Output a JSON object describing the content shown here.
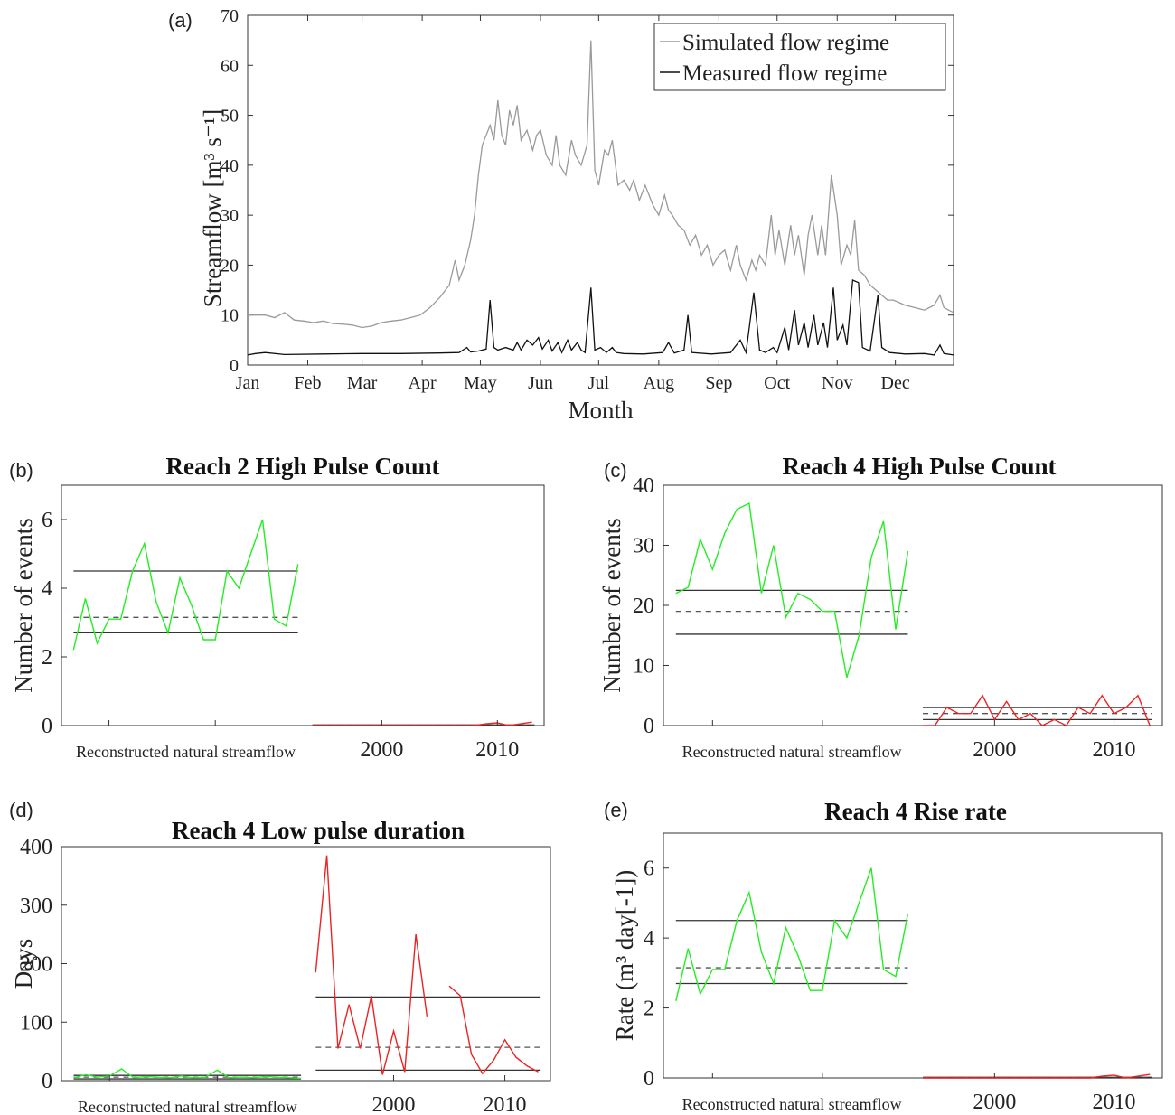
{
  "chart_data": [
    {
      "panel": "(a)",
      "type": "line",
      "title": "",
      "xlabel": "Month",
      "ylabel": "Streamflow [m³ s⁻¹]",
      "ylim": [
        0,
        70
      ],
      "yticks": [
        0,
        10,
        20,
        30,
        40,
        50,
        60,
        70
      ],
      "x_tick_labels": [
        "Jan",
        "Feb",
        "Mar",
        "Apr",
        "May",
        "Jun",
        "Jul",
        "Aug",
        "Sep",
        "Oct",
        "Nov",
        "Dec"
      ],
      "x_units": "day of year",
      "xlim": [
        1,
        365
      ],
      "grid": false,
      "legend": "top-right",
      "series": [
        {
          "name": "Simulated flow regime",
          "color": "#9a9a9a",
          "points": [
            [
              1,
              10
            ],
            [
              10,
              10
            ],
            [
              15,
              9.5
            ],
            [
              20,
              10.5
            ],
            [
              25,
              9
            ],
            [
              30,
              8.8
            ],
            [
              35,
              8.5
            ],
            [
              40,
              8.8
            ],
            [
              45,
              8.3
            ],
            [
              50,
              8.2
            ],
            [
              55,
              8.0
            ],
            [
              60,
              7.5
            ],
            [
              65,
              7.8
            ],
            [
              70,
              8.5
            ],
            [
              75,
              8.8
            ],
            [
              80,
              9.0
            ],
            [
              85,
              9.5
            ],
            [
              90,
              10.0
            ],
            [
              95,
              11.5
            ],
            [
              100,
              13.5
            ],
            [
              105,
              16
            ],
            [
              108,
              21
            ],
            [
              110,
              17
            ],
            [
              113,
              20
            ],
            [
              116,
              25
            ],
            [
              118,
              30
            ],
            [
              120,
              38
            ],
            [
              122,
              44
            ],
            [
              124,
              46
            ],
            [
              126,
              48
            ],
            [
              128,
              45
            ],
            [
              130,
              53
            ],
            [
              132,
              46
            ],
            [
              134,
              44
            ],
            [
              136,
              51
            ],
            [
              138,
              48
            ],
            [
              140,
              52
            ],
            [
              142,
              45
            ],
            [
              145,
              47
            ],
            [
              148,
              43
            ],
            [
              150,
              46
            ],
            [
              152,
              47
            ],
            [
              155,
              42
            ],
            [
              158,
              40
            ],
            [
              160,
              46
            ],
            [
              162,
              40
            ],
            [
              165,
              38
            ],
            [
              168,
              45
            ],
            [
              170,
              42
            ],
            [
              173,
              40
            ],
            [
              176,
              44
            ],
            [
              178,
              65
            ],
            [
              180,
              39
            ],
            [
              182,
              36
            ],
            [
              185,
              43
            ],
            [
              187,
              42
            ],
            [
              189,
              45
            ],
            [
              192,
              36
            ],
            [
              195,
              37
            ],
            [
              198,
              35
            ],
            [
              200,
              37
            ],
            [
              203,
              33
            ],
            [
              206,
              36
            ],
            [
              208,
              34
            ],
            [
              210,
              32
            ],
            [
              213,
              30
            ],
            [
              216,
              34
            ],
            [
              218,
              31
            ],
            [
              220,
              30
            ],
            [
              223,
              28
            ],
            [
              226,
              27
            ],
            [
              229,
              24
            ],
            [
              232,
              26
            ],
            [
              235,
              22
            ],
            [
              238,
              24
            ],
            [
              241,
              20
            ],
            [
              244,
              22
            ],
            [
              247,
              23
            ],
            [
              250,
              19
            ],
            [
              253,
              24
            ],
            [
              255,
              20
            ],
            [
              258,
              17
            ],
            [
              261,
              21
            ],
            [
              263,
              19
            ],
            [
              265,
              22
            ],
            [
              268,
              20
            ],
            [
              271,
              30
            ],
            [
              273,
              22
            ],
            [
              275,
              27
            ],
            [
              278,
              20
            ],
            [
              281,
              28
            ],
            [
              283,
              22
            ],
            [
              285,
              26
            ],
            [
              288,
              18
            ],
            [
              290,
              26
            ],
            [
              292,
              30
            ],
            [
              295,
              22
            ],
            [
              297,
              28
            ],
            [
              299,
              22
            ],
            [
              302,
              38
            ],
            [
              305,
              30
            ],
            [
              307,
              20
            ],
            [
              310,
              24
            ],
            [
              312,
              22
            ],
            [
              314,
              29
            ],
            [
              316,
              19
            ],
            [
              319,
              18
            ],
            [
              322,
              16
            ],
            [
              325,
              15
            ],
            [
              328,
              14
            ],
            [
              331,
              13
            ],
            [
              334,
              13
            ],
            [
              337,
              12.5
            ],
            [
              340,
              12
            ],
            [
              345,
              11.5
            ],
            [
              350,
              11
            ],
            [
              355,
              12
            ],
            [
              358,
              14
            ],
            [
              360,
              11.5
            ],
            [
              365,
              10.5
            ]
          ]
        },
        {
          "name": "Measured flow regime",
          "color": "#111111",
          "points": [
            [
              1,
              2
            ],
            [
              5,
              2.3
            ],
            [
              10,
              2.5
            ],
            [
              20,
              2.1
            ],
            [
              40,
              2.2
            ],
            [
              60,
              2.3
            ],
            [
              80,
              2.3
            ],
            [
              100,
              2.4
            ],
            [
              110,
              2.5
            ],
            [
              114,
              3.5
            ],
            [
              116,
              2.6
            ],
            [
              120,
              2.8
            ],
            [
              124,
              3.2
            ],
            [
              126,
              13.0
            ],
            [
              128,
              3.5
            ],
            [
              130,
              3.0
            ],
            [
              134,
              3.5
            ],
            [
              138,
              3.0
            ],
            [
              140,
              4.5
            ],
            [
              142,
              3.0
            ],
            [
              145,
              5.0
            ],
            [
              148,
              4.0
            ],
            [
              151,
              5.5
            ],
            [
              153,
              3.2
            ],
            [
              156,
              5.0
            ],
            [
              158,
              2.8
            ],
            [
              161,
              4.5
            ],
            [
              163,
              2.5
            ],
            [
              166,
              5.0
            ],
            [
              168,
              3.0
            ],
            [
              171,
              4.5
            ],
            [
              173,
              3.0
            ],
            [
              175,
              2.5
            ],
            [
              178,
              15.5
            ],
            [
              180,
              3.0
            ],
            [
              183,
              3.5
            ],
            [
              186,
              2.5
            ],
            [
              189,
              3.5
            ],
            [
              191,
              2.5
            ],
            [
              195,
              2.3
            ],
            [
              205,
              2.2
            ],
            [
              215,
              2.5
            ],
            [
              218,
              4.5
            ],
            [
              221,
              2.4
            ],
            [
              226,
              3.0
            ],
            [
              228,
              10.0
            ],
            [
              230,
              2.5
            ],
            [
              240,
              2.2
            ],
            [
              250,
              2.5
            ],
            [
              255,
              5.0
            ],
            [
              258,
              2.5
            ],
            [
              262,
              14.5
            ],
            [
              265,
              3.0
            ],
            [
              268,
              2.5
            ],
            [
              272,
              3.5
            ],
            [
              274,
              2.5
            ],
            [
              278,
              7.5
            ],
            [
              280,
              3.0
            ],
            [
              283,
              11.0
            ],
            [
              285,
              4.0
            ],
            [
              288,
              8.5
            ],
            [
              290,
              3.5
            ],
            [
              293,
              10.0
            ],
            [
              295,
              4.0
            ],
            [
              298,
              8.5
            ],
            [
              300,
              3.5
            ],
            [
              303,
              15.5
            ],
            [
              305,
              5.0
            ],
            [
              308,
              8.0
            ],
            [
              310,
              4.0
            ],
            [
              313,
              17.0
            ],
            [
              316,
              16.5
            ],
            [
              318,
              3.5
            ],
            [
              322,
              2.8
            ],
            [
              326,
              14.0
            ],
            [
              328,
              3.5
            ],
            [
              332,
              2.5
            ],
            [
              340,
              2.2
            ],
            [
              350,
              2.3
            ],
            [
              355,
              2.0
            ],
            [
              358,
              4.0
            ],
            [
              360,
              2.3
            ],
            [
              365,
              2.0
            ]
          ]
        }
      ]
    },
    {
      "panel": "(b)",
      "type": "line",
      "title": "Reach 2 High Pulse Count",
      "xlabel": "",
      "ylabel": "Number of events",
      "ylim": [
        0,
        7
      ],
      "yticks": [
        0,
        2,
        4,
        6
      ],
      "x_tick_labels": [
        "2000",
        "2010"
      ],
      "group_label": "Reconstructed natural streamflow",
      "grid": false,
      "natural": {
        "color": "#22ee22",
        "values": [
          2.2,
          3.7,
          2.4,
          3.1,
          3.1,
          4.5,
          5.3,
          3.6,
          2.7,
          4.3,
          3.5,
          2.5,
          2.5,
          4.5,
          4.0,
          5.0,
          6.0,
          3.1,
          2.9,
          4.7
        ],
        "upper": 4.5,
        "median": 3.15,
        "lower": 2.7
      },
      "measured": {
        "color": "#ee2222",
        "values": [
          0,
          0,
          0,
          0,
          0,
          0,
          0,
          0,
          0,
          0,
          0,
          0,
          0,
          0,
          0,
          0.05,
          0.08,
          0,
          0.05,
          0.1
        ],
        "upper": 0.02,
        "median": 0.01,
        "lower": 0.0,
        "year_start": 1994
      }
    },
    {
      "panel": "(c)",
      "type": "line",
      "title": "Reach 4 High Pulse Count",
      "xlabel": "",
      "ylabel": "Number of events",
      "ylim": [
        0,
        40
      ],
      "yticks": [
        0,
        10,
        20,
        30,
        40
      ],
      "x_tick_labels": [
        "2000",
        "2010"
      ],
      "group_label": "Reconstructed natural streamflow",
      "grid": false,
      "natural": {
        "color": "#22ee22",
        "values": [
          22,
          23,
          31,
          26,
          32,
          36,
          37,
          22,
          30,
          18,
          22,
          21,
          19,
          19,
          8,
          15,
          28,
          34,
          16,
          29
        ],
        "upper": 22.5,
        "median": 19,
        "lower": 15.2
      },
      "measured": {
        "color": "#ee2222",
        "values": [
          0,
          0,
          3,
          2,
          2,
          5,
          1,
          4,
          1,
          2,
          0,
          1,
          0,
          3,
          2,
          5,
          2,
          3,
          5,
          0
        ],
        "upper": 3,
        "median": 2,
        "lower": 1,
        "year_start": 1994
      }
    },
    {
      "panel": "(d)",
      "type": "line",
      "title": "Reach 4 Low pulse duration",
      "xlabel": "",
      "ylabel": "Days",
      "ylim": [
        0,
        400
      ],
      "yticks": [
        0,
        100,
        200,
        300,
        400
      ],
      "x_tick_labels": [
        "2000",
        "2010"
      ],
      "group_label": "Reconstructed natural streamflow",
      "grid": false,
      "natural": {
        "color": "#22ee22",
        "values": [
          5,
          10,
          6,
          8,
          20,
          5,
          7,
          6,
          5,
          8,
          5,
          6,
          18,
          5,
          6,
          5,
          7,
          6,
          5,
          4
        ],
        "upper": 9,
        "median": 6,
        "lower": 3
      },
      "measured": {
        "color": "#ee2222",
        "values": [
          185,
          385,
          55,
          130,
          55,
          145,
          10,
          85,
          15,
          250,
          110,
          null,
          162,
          145,
          45,
          12,
          35,
          70,
          40,
          25,
          15
        ],
        "upper": 143,
        "median": 57,
        "lower": 18,
        "year_start": 1993
      }
    },
    {
      "panel": "(e)",
      "type": "line",
      "title": "Reach 4 Rise rate",
      "xlabel": "",
      "ylabel": "Rate (m³ day[-1])",
      "ylim": [
        0,
        7
      ],
      "yticks": [
        0,
        2,
        4,
        6
      ],
      "x_tick_labels": [
        "2000",
        "2010"
      ],
      "group_label": "Reconstructed natural streamflow",
      "grid": false,
      "natural": {
        "color": "#22ee22",
        "values": [
          2.2,
          3.7,
          2.4,
          3.1,
          3.1,
          4.5,
          5.3,
          3.6,
          2.7,
          4.3,
          3.5,
          2.5,
          2.5,
          4.5,
          4.0,
          5.0,
          6.0,
          3.1,
          2.9,
          4.7
        ],
        "upper": 4.5,
        "median": 3.15,
        "lower": 2.7
      },
      "measured": {
        "color": "#ee2222",
        "values": [
          0,
          0,
          0,
          0,
          0,
          0,
          0,
          0,
          0,
          0,
          0,
          0,
          0,
          0,
          0,
          0.05,
          0.08,
          0,
          0.05,
          0.1
        ],
        "upper": 0.02,
        "median": 0.01,
        "lower": 0.0,
        "year_start": 1994
      }
    }
  ]
}
